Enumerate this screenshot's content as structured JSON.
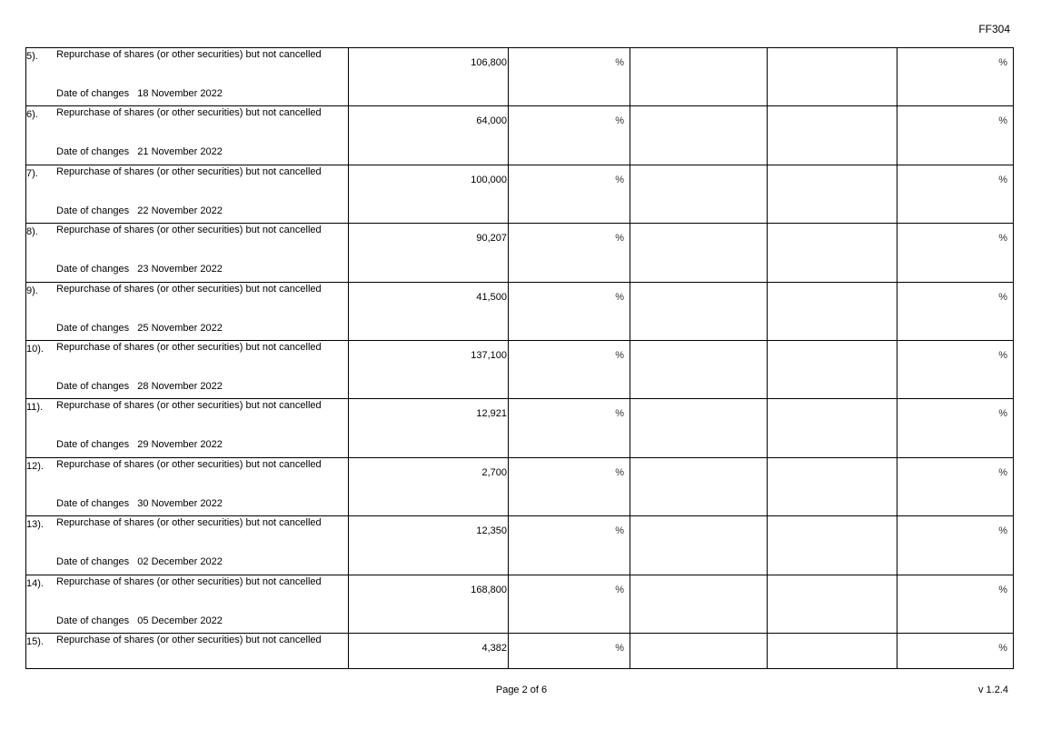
{
  "header": {
    "form_code": "FF304"
  },
  "rows": [
    {
      "index": "5).",
      "description": "Repurchase of shares (or other securities) but not cancelled",
      "amount": "106,800",
      "percent1": "%",
      "percent2": "%",
      "date_label": "Date of changes",
      "date": "18 November 2022"
    },
    {
      "index": "6).",
      "description": "Repurchase of shares (or other securities) but not cancelled",
      "amount": "64,000",
      "percent1": "%",
      "percent2": "%",
      "date_label": "Date of changes",
      "date": "21 November 2022"
    },
    {
      "index": "7).",
      "description": "Repurchase of shares (or other securities) but not cancelled",
      "amount": "100,000",
      "percent1": "%",
      "percent2": "%",
      "date_label": "Date of changes",
      "date": "22 November 2022"
    },
    {
      "index": "8).",
      "description": "Repurchase of shares (or other securities) but not cancelled",
      "amount": "90,207",
      "percent1": "%",
      "percent2": "%",
      "date_label": "Date of changes",
      "date": "23 November 2022"
    },
    {
      "index": "9).",
      "description": "Repurchase of shares (or other securities) but not cancelled",
      "amount": "41,500",
      "percent1": "%",
      "percent2": "%",
      "date_label": "Date of changes",
      "date": "25 November 2022"
    },
    {
      "index": "10).",
      "description": "Repurchase of shares (or other securities) but not cancelled",
      "amount": "137,100",
      "percent1": "%",
      "percent2": "%",
      "date_label": "Date of changes",
      "date": "28 November 2022"
    },
    {
      "index": "11).",
      "description": "Repurchase of shares (or other securities) but not cancelled",
      "amount": "12,921",
      "percent1": "%",
      "percent2": "%",
      "date_label": "Date of changes",
      "date": "29 November 2022"
    },
    {
      "index": "12).",
      "description": "Repurchase of shares (or other securities) but not cancelled",
      "amount": "2,700",
      "percent1": "%",
      "percent2": "%",
      "date_label": "Date of changes",
      "date": "30 November 2022"
    },
    {
      "index": "13).",
      "description": "Repurchase of shares (or other securities) but not cancelled",
      "amount": "12,350",
      "percent1": "%",
      "percent2": "%",
      "date_label": "Date of changes",
      "date": "02 December 2022"
    },
    {
      "index": "14).",
      "description": "Repurchase of shares (or other securities) but not cancelled",
      "amount": "168,800",
      "percent1": "%",
      "percent2": "%",
      "date_label": "Date of changes",
      "date": "05 December 2022"
    },
    {
      "index": "15).",
      "description": "Repurchase of shares (or other securities) but not cancelled",
      "amount": "4,382",
      "percent1": "%",
      "percent2": "%"
    }
  ],
  "footer": {
    "page": "Page 2 of 6",
    "version": "v 1.2.4"
  }
}
